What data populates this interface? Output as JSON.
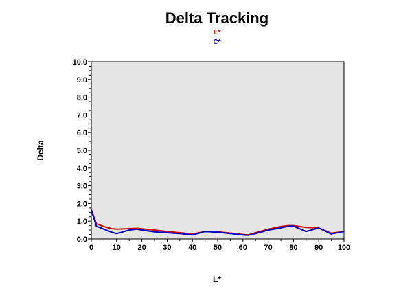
{
  "chart_data": {
    "type": "line",
    "title": "Delta Tracking",
    "xlabel": "L*",
    "ylabel": "Delta",
    "xlim": [
      0,
      100
    ],
    "ylim": [
      0,
      10
    ],
    "x_ticks": [
      "0",
      "10",
      "20",
      "30",
      "40",
      "50",
      "60",
      "70",
      "80",
      "90",
      "100"
    ],
    "y_ticks": [
      "0.0",
      "1.0",
      "2.0",
      "3.0",
      "4.0",
      "5.0",
      "6.0",
      "7.0",
      "8.0",
      "9.0",
      "10.0"
    ],
    "grid": false,
    "legend_position": "top-center",
    "plot_background": "#e6e6e6",
    "series": [
      {
        "name": "E*",
        "color": "#cc0000",
        "x": [
          0,
          2,
          5,
          8,
          10,
          15,
          18,
          20,
          25,
          30,
          35,
          40,
          45,
          50,
          55,
          60,
          62,
          65,
          70,
          75,
          78,
          80,
          85,
          90,
          95,
          100
        ],
        "y": [
          1.65,
          0.85,
          0.7,
          0.58,
          0.55,
          0.58,
          0.6,
          0.57,
          0.5,
          0.42,
          0.35,
          0.28,
          0.42,
          0.4,
          0.33,
          0.25,
          0.22,
          0.35,
          0.55,
          0.7,
          0.75,
          0.75,
          0.65,
          0.62,
          0.32,
          0.42
        ]
      },
      {
        "name": "C*",
        "color": "#0000cc",
        "x": [
          0,
          2,
          5,
          8,
          10,
          15,
          18,
          20,
          25,
          30,
          35,
          40,
          45,
          50,
          55,
          60,
          62,
          65,
          70,
          75,
          78,
          80,
          85,
          90,
          95,
          100
        ],
        "y": [
          1.62,
          0.72,
          0.55,
          0.38,
          0.3,
          0.5,
          0.55,
          0.5,
          0.4,
          0.35,
          0.3,
          0.22,
          0.42,
          0.38,
          0.3,
          0.22,
          0.2,
          0.3,
          0.5,
          0.62,
          0.72,
          0.72,
          0.42,
          0.62,
          0.28,
          0.42
        ]
      }
    ]
  }
}
